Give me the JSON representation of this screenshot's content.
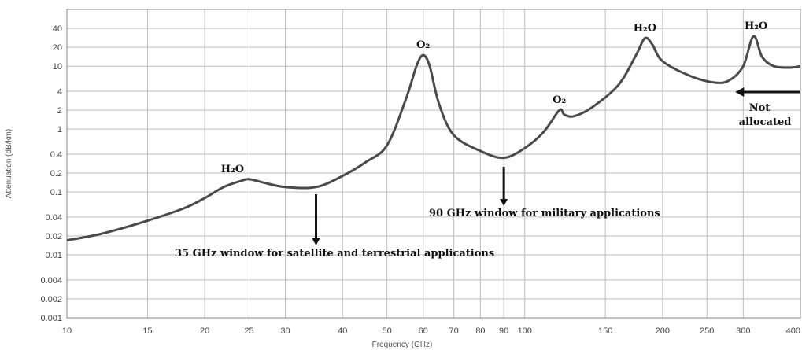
{
  "chart_data": {
    "type": "line",
    "xlabel": "Frequency (GHz)",
    "ylabel": "Attenuation (dB/km)",
    "x_scale": "log",
    "y_scale": "log",
    "xlim": [
      10,
      400
    ],
    "ylim": [
      0.001,
      80
    ],
    "grid": true,
    "x_ticks": [
      10,
      15,
      20,
      25,
      30,
      40,
      50,
      60,
      70,
      80,
      90,
      100,
      150,
      200,
      250,
      300,
      400
    ],
    "x_tick_labels": [
      "10",
      "15",
      "20",
      "25",
      "30",
      "40",
      "50",
      "60",
      "70",
      "80",
      "90",
      "100",
      "150",
      "200",
      "250",
      "300",
      "400"
    ],
    "y_ticks": [
      0.001,
      0.002,
      0.004,
      0.01,
      0.02,
      0.04,
      0.1,
      0.2,
      0.4,
      1,
      2,
      4,
      10,
      20,
      40
    ],
    "y_tick_labels": [
      "0.001",
      "0.002",
      "0.004",
      "0.01",
      "0.02",
      "0.04",
      "0.1",
      "0.2",
      "0.4",
      "1",
      "2",
      "4",
      "10",
      "20",
      "40"
    ],
    "series": [
      {
        "x": [
          10,
          12,
          15,
          18,
          20,
          22,
          24,
          25,
          27,
          30,
          35,
          40,
          45,
          50,
          55,
          58,
          60,
          62,
          65,
          70,
          80,
          90,
          100,
          110,
          119,
          122,
          128,
          140,
          160,
          175,
          183,
          190,
          200,
          230,
          260,
          280,
          300,
          316,
          330,
          350,
          380,
          400
        ],
        "y": [
          0.017,
          0.022,
          0.035,
          0.055,
          0.08,
          0.12,
          0.15,
          0.16,
          0.14,
          0.12,
          0.12,
          0.18,
          0.3,
          0.55,
          3.0,
          10.0,
          15.0,
          10.0,
          2.5,
          0.8,
          0.45,
          0.35,
          0.5,
          0.9,
          2.0,
          1.7,
          1.6,
          2.2,
          5.0,
          15.0,
          28.0,
          22.0,
          12.0,
          7.0,
          5.5,
          6.0,
          10.0,
          30.0,
          14.0,
          10.0,
          9.5,
          10.0
        ]
      }
    ],
    "peak_labels": [
      {
        "text": "H₂O",
        "x": 23,
        "y": 0.16
      },
      {
        "text": "O₂",
        "x": 60,
        "y": 15
      },
      {
        "text": "O₂",
        "x": 119,
        "y": 2
      },
      {
        "text": "H₂O",
        "x": 183,
        "y": 28
      },
      {
        "text": "H₂O",
        "x": 320,
        "y": 30
      }
    ],
    "annotations": [
      {
        "text": "35 GHz window for satellite and terrestrial applications",
        "arrow_x": 35
      },
      {
        "text": "90 GHz window for military applications",
        "arrow_x": 90
      },
      {
        "text": "Not allocated",
        "line1": "Not",
        "line2": "allocated",
        "from_x": 300,
        "to_x": 400
      }
    ]
  }
}
